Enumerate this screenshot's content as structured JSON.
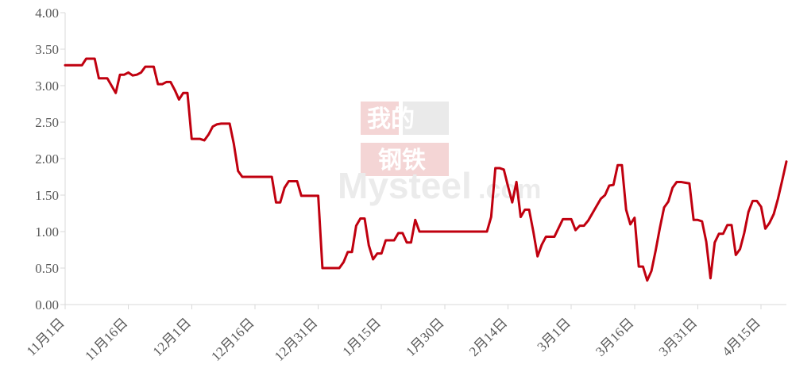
{
  "chart_data": {
    "type": "line",
    "title": "",
    "xlabel": "",
    "ylabel": "",
    "ylim": [
      0,
      4
    ],
    "y_ticks": [
      "0.00",
      "0.50",
      "1.00",
      "1.50",
      "2.00",
      "2.50",
      "3.00",
      "3.50",
      "4.00"
    ],
    "x_ticks": [
      "11月1日",
      "11月16日",
      "12月1日",
      "12月16日",
      "12月31日",
      "1月15日",
      "1月30日",
      "2月14日",
      "3月1日",
      "3月16日",
      "3月31日",
      "4月15日"
    ],
    "grid": false,
    "legend": "none",
    "series": [
      {
        "color": "#c0000f",
        "points": [
          [
            0,
            3.28
          ],
          [
            1,
            3.28
          ],
          [
            2,
            3.28
          ],
          [
            3,
            3.28
          ],
          [
            4,
            3.28
          ],
          [
            5,
            3.37
          ],
          [
            6,
            3.37
          ],
          [
            7,
            3.37
          ],
          [
            8,
            3.1
          ],
          [
            9,
            3.1
          ],
          [
            10,
            3.1
          ],
          [
            11,
            3.0
          ],
          [
            12,
            2.9
          ],
          [
            13,
            3.15
          ],
          [
            14,
            3.15
          ],
          [
            15,
            3.18
          ],
          [
            16,
            3.14
          ],
          [
            17,
            3.15
          ],
          [
            18,
            3.18
          ],
          [
            19,
            3.26
          ],
          [
            20,
            3.26
          ],
          [
            21,
            3.26
          ],
          [
            22,
            3.02
          ],
          [
            23,
            3.02
          ],
          [
            24,
            3.05
          ],
          [
            25,
            3.05
          ],
          [
            26,
            2.94
          ],
          [
            27,
            2.81
          ],
          [
            28,
            2.9
          ],
          [
            29,
            2.9
          ],
          [
            30,
            2.27
          ],
          [
            31,
            2.27
          ],
          [
            32,
            2.27
          ],
          [
            33,
            2.25
          ],
          [
            34,
            2.33
          ],
          [
            35,
            2.44
          ],
          [
            36,
            2.47
          ],
          [
            37,
            2.48
          ],
          [
            38,
            2.48
          ],
          [
            39,
            2.48
          ],
          [
            40,
            2.2
          ],
          [
            41,
            1.83
          ],
          [
            42,
            1.75
          ],
          [
            43,
            1.75
          ],
          [
            44,
            1.75
          ],
          [
            45,
            1.75
          ],
          [
            46,
            1.75
          ],
          [
            47,
            1.75
          ],
          [
            48,
            1.75
          ],
          [
            49,
            1.75
          ],
          [
            50,
            1.4
          ],
          [
            51,
            1.4
          ],
          [
            52,
            1.6
          ],
          [
            53,
            1.69
          ],
          [
            54,
            1.69
          ],
          [
            55,
            1.69
          ],
          [
            56,
            1.49
          ],
          [
            57,
            1.49
          ],
          [
            58,
            1.49
          ],
          [
            59,
            1.49
          ],
          [
            60,
            1.49
          ],
          [
            61,
            0.5
          ],
          [
            62,
            0.5
          ],
          [
            63,
            0.5
          ],
          [
            64,
            0.5
          ],
          [
            65,
            0.5
          ],
          [
            66,
            0.58
          ],
          [
            67,
            0.72
          ],
          [
            68,
            0.72
          ],
          [
            69,
            1.08
          ],
          [
            70,
            1.18
          ],
          [
            71,
            1.18
          ],
          [
            72,
            0.81
          ],
          [
            73,
            0.62
          ],
          [
            74,
            0.7
          ],
          [
            75,
            0.7
          ],
          [
            76,
            0.88
          ],
          [
            77,
            0.88
          ],
          [
            78,
            0.88
          ],
          [
            79,
            0.98
          ],
          [
            80,
            0.98
          ],
          [
            81,
            0.85
          ],
          [
            82,
            0.85
          ],
          [
            83,
            1.16
          ],
          [
            84,
            1.0
          ],
          [
            85,
            1.0
          ],
          [
            86,
            1.0
          ],
          [
            87,
            1.0
          ],
          [
            88,
            1.0
          ],
          [
            89,
            1.0
          ],
          [
            90,
            1.0
          ],
          [
            91,
            1.0
          ],
          [
            92,
            1.0
          ],
          [
            93,
            1.0
          ],
          [
            94,
            1.0
          ],
          [
            95,
            1.0
          ],
          [
            96,
            1.0
          ],
          [
            97,
            1.0
          ],
          [
            98,
            1.0
          ],
          [
            99,
            1.0
          ],
          [
            100,
            1.0
          ],
          [
            101,
            1.2
          ],
          [
            102,
            1.87
          ],
          [
            103,
            1.87
          ],
          [
            104,
            1.85
          ],
          [
            105,
            1.62
          ],
          [
            106,
            1.4
          ],
          [
            107,
            1.68
          ],
          [
            108,
            1.2
          ],
          [
            109,
            1.3
          ],
          [
            110,
            1.3
          ],
          [
            111,
            1.0
          ],
          [
            112,
            0.66
          ],
          [
            113,
            0.82
          ],
          [
            114,
            0.93
          ],
          [
            115,
            0.93
          ],
          [
            116,
            0.93
          ],
          [
            117,
            1.05
          ],
          [
            118,
            1.17
          ],
          [
            119,
            1.17
          ],
          [
            120,
            1.17
          ],
          [
            121,
            1.02
          ],
          [
            122,
            1.08
          ],
          [
            123,
            1.08
          ],
          [
            124,
            1.15
          ],
          [
            125,
            1.25
          ],
          [
            126,
            1.35
          ],
          [
            127,
            1.45
          ],
          [
            128,
            1.5
          ],
          [
            129,
            1.63
          ],
          [
            130,
            1.64
          ],
          [
            131,
            1.91
          ],
          [
            132,
            1.91
          ],
          [
            133,
            1.3
          ],
          [
            134,
            1.1
          ],
          [
            135,
            1.19
          ],
          [
            136,
            0.52
          ],
          [
            137,
            0.52
          ],
          [
            138,
            0.33
          ],
          [
            139,
            0.46
          ],
          [
            140,
            0.74
          ],
          [
            141,
            1.05
          ],
          [
            142,
            1.33
          ],
          [
            143,
            1.41
          ],
          [
            144,
            1.6
          ],
          [
            145,
            1.68
          ],
          [
            146,
            1.68
          ],
          [
            147,
            1.67
          ],
          [
            148,
            1.66
          ],
          [
            149,
            1.16
          ],
          [
            150,
            1.16
          ],
          [
            151,
            1.14
          ],
          [
            152,
            0.86
          ],
          [
            153,
            0.36
          ],
          [
            154,
            0.85
          ],
          [
            155,
            0.97
          ],
          [
            156,
            0.97
          ],
          [
            157,
            1.09
          ],
          [
            158,
            1.09
          ],
          [
            159,
            0.68
          ],
          [
            160,
            0.76
          ],
          [
            161,
            0.98
          ],
          [
            162,
            1.27
          ],
          [
            163,
            1.42
          ],
          [
            164,
            1.42
          ],
          [
            165,
            1.34
          ],
          [
            166,
            1.04
          ],
          [
            167,
            1.12
          ],
          [
            168,
            1.24
          ],
          [
            169,
            1.45
          ],
          [
            170,
            1.7
          ],
          [
            171,
            1.96
          ]
        ]
      }
    ]
  },
  "watermark": {
    "top_text": "我的",
    "middle_text": "钢铁",
    "brand_text": "Mysteel",
    "suffix_text": ".com"
  }
}
